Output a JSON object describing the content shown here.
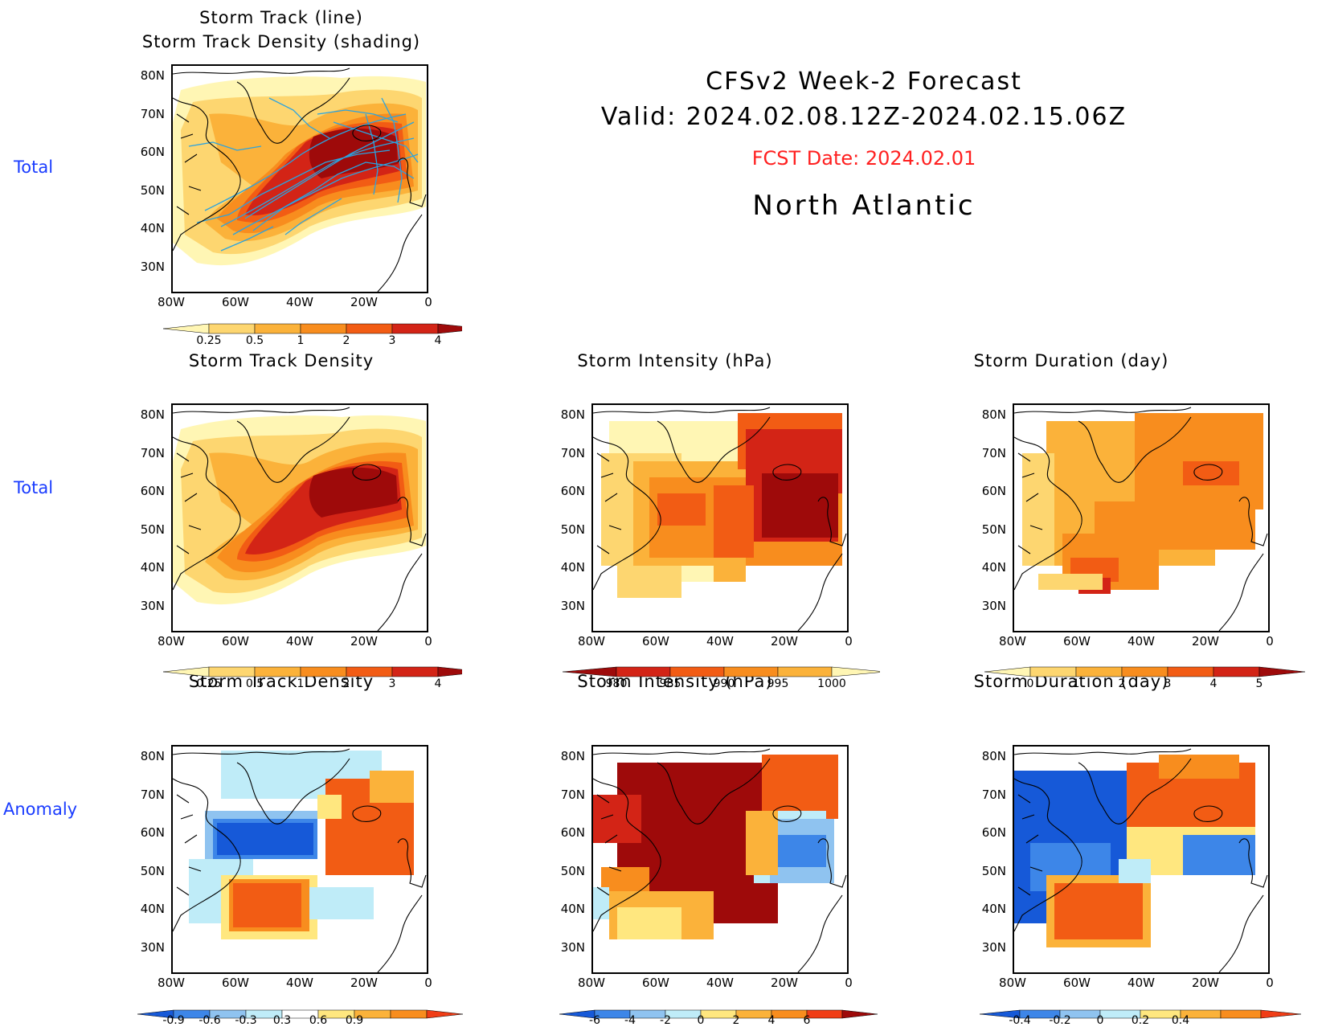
{
  "header": {
    "line1": "CFSv2 Week-2 Forecast",
    "line2": "Valid: 2024.02.08.12Z-2024.02.15.06Z",
    "fcst_date": "FCST Date: 2024.02.01",
    "region": "North Atlantic",
    "fcst_color": "#ff2020"
  },
  "row_labels": [
    "Total",
    "Total",
    "Anomaly"
  ],
  "axes": {
    "y_ticks": [
      "80N",
      "70N",
      "60N",
      "50N",
      "40N",
      "30N"
    ],
    "x_ticks": [
      "80W",
      "60W",
      "40W",
      "20W",
      "0"
    ]
  },
  "panels": {
    "p0": {
      "title1": "Storm Track (line)",
      "title2": "Storm Track Density (shading)"
    },
    "p1": {
      "title": "Storm Track Density"
    },
    "p2": {
      "title": "Storm Intensity (hPa)"
    },
    "p3": {
      "title": "Storm Duration (day)"
    },
    "p4": {
      "title": "Storm Track Density"
    },
    "p5": {
      "title": "Storm Intensity (hPa)"
    },
    "p6": {
      "title": "Storm Duration (day)"
    }
  },
  "colorbars": {
    "density": {
      "labels": [
        "0.25",
        "0.5",
        "1",
        "2",
        "3",
        "4"
      ],
      "colors": [
        "#fff6b4",
        "#fdd670",
        "#fbb23a",
        "#f88d1e",
        "#f25c14",
        "#d32416",
        "#9e0a0a"
      ]
    },
    "intensity": {
      "labels": [
        "980",
        "985",
        "990",
        "995",
        "1000"
      ],
      "colors": [
        "#9e0a0a",
        "#d32416",
        "#f25c14",
        "#f88d1e",
        "#fbb23a",
        "#fff6b4"
      ]
    },
    "duration": {
      "labels": [
        "0",
        "1",
        "2",
        "3",
        "4",
        "5"
      ],
      "colors": [
        "#fff6b4",
        "#fdd670",
        "#fbb23a",
        "#f88d1e",
        "#f25c14",
        "#d32416",
        "#9e0a0a"
      ]
    },
    "dens_anom": {
      "labels": [
        "-0.9",
        "-0.6",
        "-0.3",
        "0.3",
        "0.6",
        "0.9"
      ],
      "colors": [
        "#1659d8",
        "#3d86e8",
        "#8fc3f0",
        "#bfecf8",
        "#ffffff",
        "#ffe77f",
        "#fbb23a",
        "#f88d1e",
        "#f03d16"
      ]
    },
    "int_anom": {
      "labels": [
        "-6",
        "-4",
        "-2",
        "0",
        "2",
        "4",
        "6"
      ],
      "colors": [
        "#1659d8",
        "#3d86e8",
        "#8fc3f0",
        "#bfecf8",
        "#ffe77f",
        "#fbb23a",
        "#f88d1e",
        "#f03d16",
        "#9e0a0a"
      ]
    },
    "dur_anom": {
      "labels": [
        "-0.4",
        "-0.2",
        "0",
        "0.2",
        "0.4"
      ],
      "colors": [
        "#1659d8",
        "#3d86e8",
        "#8fc3f0",
        "#bfecf8",
        "#ffe77f",
        "#fbb23a",
        "#f88d1e",
        "#f03d16"
      ]
    }
  }
}
